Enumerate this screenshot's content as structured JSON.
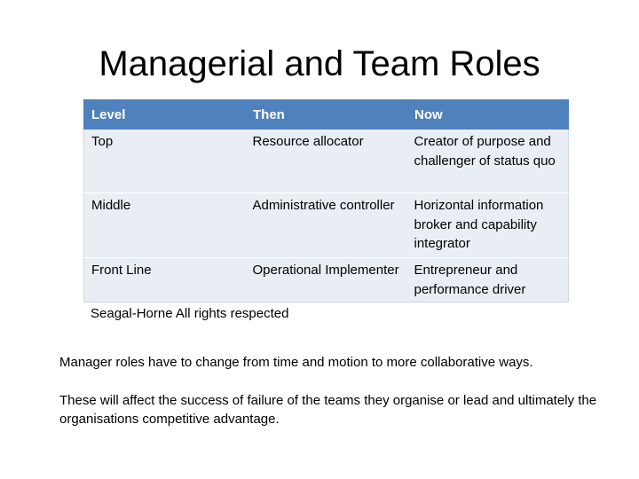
{
  "slide": {
    "title": "Managerial and Team Roles"
  },
  "table": {
    "headers": [
      "Level",
      "Then",
      "Now"
    ],
    "rows": [
      [
        "Top",
        "Resource allocator",
        "Creator of purpose and challenger of status quo"
      ],
      [
        "Middle",
        "Administrative controller",
        "Horizontal information broker and capability integrator"
      ],
      [
        "Front Line",
        "Operational Implementer",
        "Entrepreneur and performance driver"
      ]
    ],
    "header_color": "#4f81bd",
    "row_color": "#e9edf4"
  },
  "caption": "Seagal-Horne All rights respected",
  "body": {
    "paragraph_1": "Manager roles have to change from time and motion to more collaborative ways.",
    "paragraph_2": "These will affect the success of failure of the teams they organise or lead and ultimately the organisations competitive advantage."
  }
}
